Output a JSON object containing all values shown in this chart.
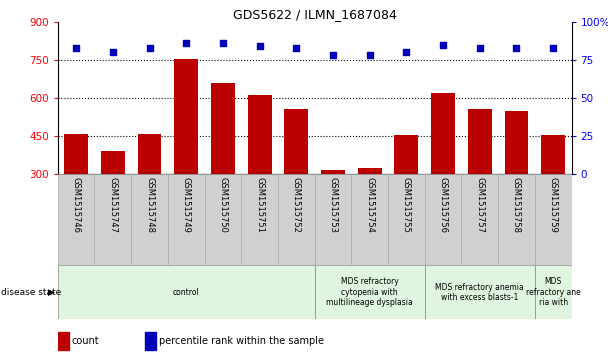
{
  "title": "GDS5622 / ILMN_1687084",
  "samples": [
    "GSM1515746",
    "GSM1515747",
    "GSM1515748",
    "GSM1515749",
    "GSM1515750",
    "GSM1515751",
    "GSM1515752",
    "GSM1515753",
    "GSM1515754",
    "GSM1515755",
    "GSM1515756",
    "GSM1515757",
    "GSM1515758",
    "GSM1515759"
  ],
  "counts": [
    460,
    390,
    460,
    755,
    660,
    610,
    555,
    315,
    325,
    455,
    620,
    555,
    550,
    455
  ],
  "percentiles": [
    83,
    80,
    83,
    86,
    86,
    84,
    83,
    78,
    78,
    80,
    85,
    83,
    83,
    83
  ],
  "ylim_left": [
    300,
    900
  ],
  "ylim_right": [
    0,
    100
  ],
  "yticks_left": [
    300,
    450,
    600,
    750,
    900
  ],
  "yticks_right": [
    0,
    25,
    50,
    75,
    100
  ],
  "bar_color": "#bb0000",
  "dot_color": "#0000bb",
  "disease_groups": [
    {
      "label": "control",
      "start": 0,
      "end": 7,
      "color": "#e0f5e0"
    },
    {
      "label": "MDS refractory\ncytopenia with\nmultilineage dysplasia",
      "start": 7,
      "end": 10,
      "color": "#e0f5e0"
    },
    {
      "label": "MDS refractory anemia\nwith excess blasts-1",
      "start": 10,
      "end": 13,
      "color": "#e0f5e0"
    },
    {
      "label": "MDS\nrefractory ane\nria with",
      "start": 13,
      "end": 14,
      "color": "#e0f5e0"
    }
  ],
  "disease_state_label": "disease state",
  "legend_count_label": "count",
  "legend_percentile_label": "percentile rank within the sample",
  "tick_label_bg": "#d0d0d0"
}
